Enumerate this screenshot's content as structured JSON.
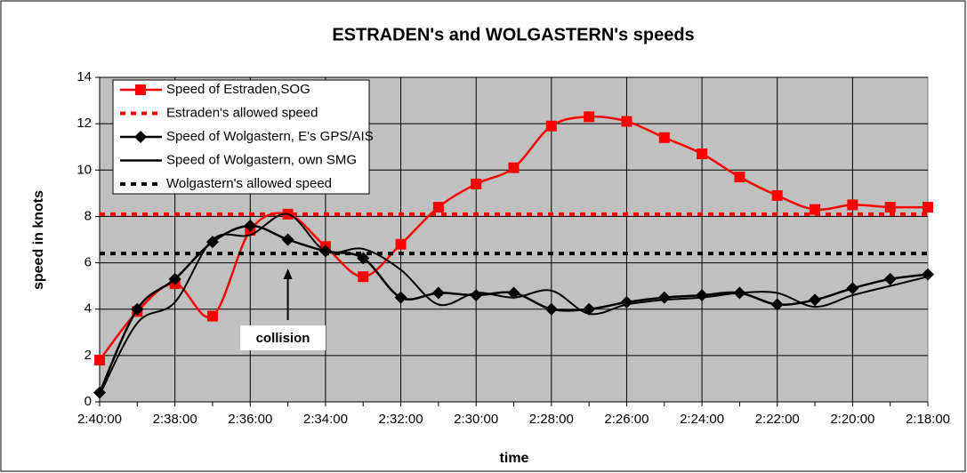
{
  "chart_data": {
    "type": "line",
    "title": "ESTRADEN's and WOLGASTERN's speeds",
    "x_label": "time",
    "y_label": "speed in knots",
    "annotation": "collision",
    "categories": [
      "2:40:00",
      null,
      "2:38:00",
      null,
      "2:36:00",
      null,
      "2:34:00",
      null,
      "2:32:00",
      null,
      "2:30:00",
      null,
      "2:28:00",
      null,
      "2:26:00",
      null,
      "2:24:00",
      null,
      "2:22:00",
      null,
      "2:20:00",
      null,
      "2:18:00"
    ],
    "series": [
      {
        "name": "Speed of Estraden,SOG",
        "color": "#ff0000",
        "marker": "square",
        "dashed": false,
        "values": [
          1.8,
          3.9,
          5.1,
          3.7,
          7.4,
          8.1,
          6.7,
          5.4,
          6.8,
          8.4,
          9.4,
          10.1,
          11.9,
          12.3,
          12.1,
          11.4,
          10.7,
          9.7,
          8.9,
          8.3,
          8.5,
          8.4,
          8.4
        ]
      },
      {
        "name": "Estraden's allowed speed",
        "color": "#ff0000",
        "marker": null,
        "dashed": true,
        "values": [
          8.1,
          8.1,
          8.1,
          8.1,
          8.1,
          8.1,
          8.1,
          8.1,
          8.1,
          8.1,
          8.1,
          8.1,
          8.1,
          8.1,
          8.1,
          8.1,
          8.1,
          8.1,
          8.1,
          8.1,
          8.1,
          8.1,
          8.1
        ]
      },
      {
        "name": "Speed of Wolgastern, E's GPS/AIS",
        "color": "#000000",
        "marker": "diamond",
        "dashed": false,
        "values": [
          0.4,
          4.0,
          5.3,
          6.9,
          7.6,
          7.0,
          6.5,
          6.2,
          4.5,
          4.7,
          4.6,
          4.7,
          4.0,
          4.0,
          4.3,
          4.5,
          4.6,
          4.7,
          4.2,
          4.4,
          4.9,
          5.3,
          5.5
        ]
      },
      {
        "name": "Speed of Wolgastern, own SMG",
        "color": "#000000",
        "marker": null,
        "dashed": false,
        "values": [
          0.3,
          3.4,
          4.3,
          7.0,
          7.2,
          8.1,
          6.5,
          6.6,
          5.7,
          4.2,
          4.7,
          4.5,
          4.8,
          3.8,
          4.2,
          4.4,
          4.5,
          4.7,
          4.7,
          4.1,
          4.6,
          5.0,
          5.4
        ]
      },
      {
        "name": "Wolgastern's allowed speed",
        "color": "#000000",
        "marker": null,
        "dashed": true,
        "values": [
          6.4,
          6.4,
          6.4,
          6.4,
          6.4,
          6.4,
          6.4,
          6.4,
          6.4,
          6.4,
          6.4,
          6.4,
          6.4,
          6.4,
          6.4,
          6.4,
          6.4,
          6.4,
          6.4,
          6.4,
          6.4,
          6.4,
          6.4
        ]
      }
    ],
    "ylim": [
      0,
      14
    ],
    "yticks": [
      0,
      2,
      4,
      6,
      8,
      10,
      12,
      14
    ],
    "grid": true,
    "legend": "upper left"
  }
}
